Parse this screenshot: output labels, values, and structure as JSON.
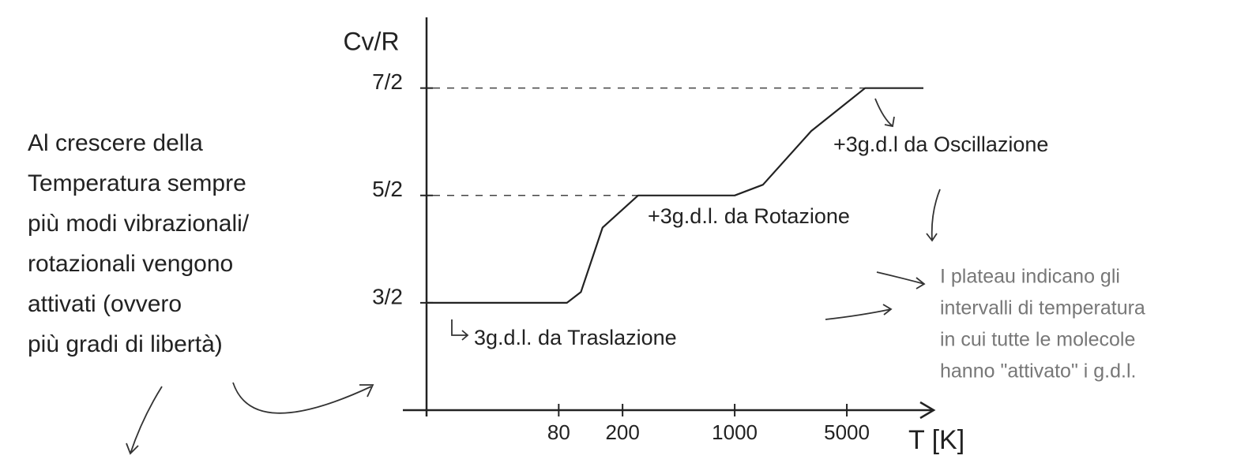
{
  "chart_data": {
    "type": "line",
    "y_label": "Cv/R",
    "x_label": "T [K]",
    "x": [
      12,
      90,
      110,
      150,
      250,
      1000,
      1500,
      3000,
      6500,
      15000
    ],
    "series": [
      {
        "color": "#222222",
        "values": [
          1.5,
          1.5,
          1.6,
          2.2,
          2.5,
          2.5,
          2.6,
          3.1,
          3.5,
          3.5
        ]
      }
    ],
    "xscale": "log",
    "xlim": [
      12,
      17000
    ],
    "xticks": [
      80,
      200,
      1000,
      5000
    ],
    "ylim": [
      0.5,
      4.1
    ],
    "yticks": [
      {
        "value": 1.5,
        "label": "3/2"
      },
      {
        "value": 2.5,
        "label": "5/2"
      },
      {
        "value": 3.5,
        "label": "7/2"
      }
    ],
    "annotations": {
      "oscillation": "+3g.d.l da Oscillazione",
      "rotation": "+3g.d.l. da Rotazione",
      "translation": "3g.d.l. da Traslazione",
      "left_text": [
        "Al crescere della",
        "Temperatura sempre",
        "più modi vibrazionali/",
        "rotazionali vengono",
        "attivati (ovvero",
        "più gradi di libertà)"
      ],
      "right_note": [
        "I plateau indicano gli",
        "intervalli di temperatura",
        "in cui tutte le molecole",
        "hanno \"attivato\" i g.d.l."
      ]
    }
  }
}
